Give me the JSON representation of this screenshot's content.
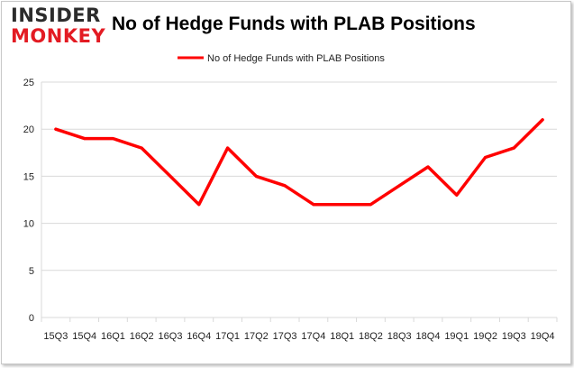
{
  "logo": {
    "line1": "INSIDER",
    "line2": "MONKEY"
  },
  "colors": {
    "series": "#ff0000",
    "grid": "#d9d9d9",
    "border": "#c8c8c8"
  },
  "chart_data": {
    "type": "line",
    "title": "No of Hedge Funds with PLAB Positions",
    "xlabel": "",
    "ylabel": "",
    "ylim": [
      0,
      25
    ],
    "yticks": [
      0,
      5,
      10,
      15,
      20,
      25
    ],
    "grid": true,
    "legend_position": "top",
    "categories": [
      "15Q3",
      "15Q4",
      "16Q1",
      "16Q2",
      "16Q3",
      "16Q4",
      "17Q1",
      "17Q2",
      "17Q3",
      "17Q4",
      "18Q1",
      "18Q2",
      "18Q3",
      "18Q4",
      "19Q1",
      "19Q2",
      "19Q3",
      "19Q4"
    ],
    "series": [
      {
        "name": "No of Hedge Funds with PLAB Positions",
        "values": [
          20,
          19,
          19,
          18,
          15,
          12,
          18,
          15,
          14,
          12,
          12,
          12,
          14,
          16,
          13,
          17,
          18,
          21
        ]
      }
    ]
  }
}
